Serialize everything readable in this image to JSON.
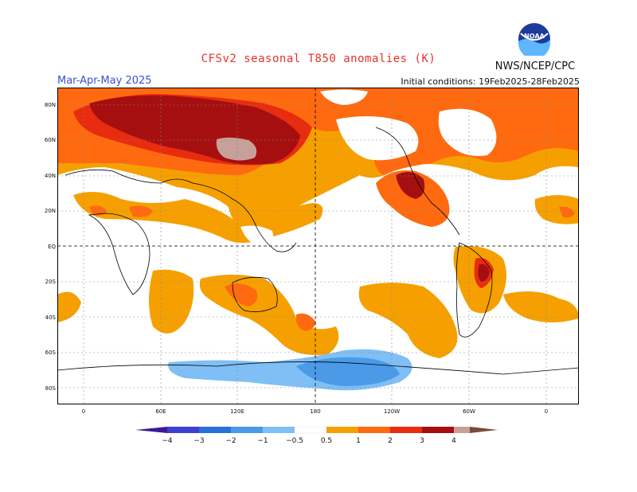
{
  "header": {
    "title": "CFSv2 seasonal T850 anomalies (K)",
    "season": "Mar-Apr-May 2025",
    "initial_conditions": "Initial conditions: 19Feb2025-28Feb2025",
    "agency": "NWS/NCEP/CPC",
    "logo_text": "NOAA"
  },
  "axes": {
    "lat_labels": [
      "80N",
      "60N",
      "40N",
      "20N",
      "EQ",
      "20S",
      "40S",
      "60S",
      "80S"
    ],
    "lon_labels": [
      "0",
      "60E",
      "120E",
      "180",
      "120W",
      "60W",
      "0"
    ]
  },
  "legend": {
    "tick_labels": [
      "−4",
      "−3",
      "−2",
      "−1",
      "−0.5",
      "0.5",
      "1",
      "2",
      "3",
      "4"
    ],
    "colors": [
      "#3a1a9a",
      "#3f3fd3",
      "#2a6fd8",
      "#4a9ae8",
      "#7fbff5",
      "#ffffff",
      "#f5a000",
      "#ff6a10",
      "#e82c10",
      "#a50f0f",
      "#c8a09a",
      "#7a4a3a"
    ]
  },
  "colors": {
    "orange": "#f5a000",
    "red_orange": "#ff6a10",
    "red": "#e82c10",
    "dark_red": "#a50f0f",
    "pink_gray": "#c8a09a",
    "blue_light": "#7fbff5",
    "blue": "#4a9ae8"
  }
}
